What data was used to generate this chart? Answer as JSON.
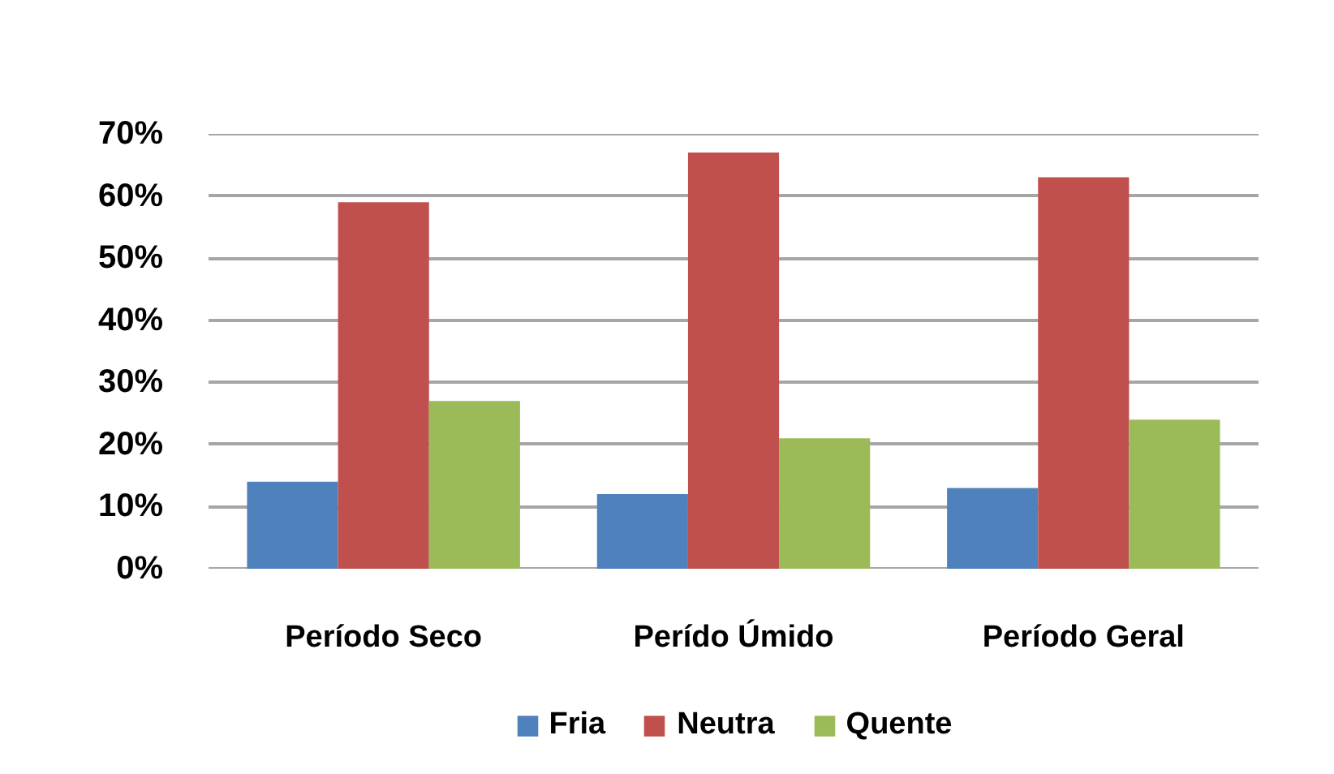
{
  "chart_data": {
    "type": "bar",
    "categories": [
      "Período Seco",
      "Perído Úmido",
      "Período Geral"
    ],
    "series": [
      {
        "name": "Fria",
        "color": "#4f81bd",
        "values": [
          14,
          12,
          13
        ]
      },
      {
        "name": "Neutra",
        "color": "#c0504d",
        "values": [
          59,
          67,
          63
        ]
      },
      {
        "name": "Quente",
        "color": "#9bbb59",
        "values": [
          27,
          21,
          24
        ]
      }
    ],
    "ylim": [
      0,
      70
    ],
    "yticks": [
      {
        "value": 0,
        "label": "0%"
      },
      {
        "value": 10,
        "label": "10%"
      },
      {
        "value": 20,
        "label": "20%"
      },
      {
        "value": 30,
        "label": "30%"
      },
      {
        "value": 40,
        "label": "40%"
      },
      {
        "value": 50,
        "label": "50%"
      },
      {
        "value": 60,
        "label": "60%"
      },
      {
        "value": 70,
        "label": "70%"
      }
    ],
    "grid": "y",
    "legend": "bottom"
  }
}
